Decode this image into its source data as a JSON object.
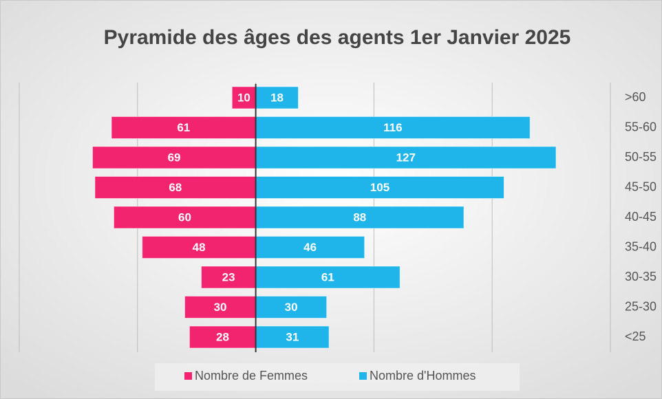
{
  "chart_data": {
    "type": "pyramid",
    "title": "Pyramide des âges des agents 1er Janvier 2025",
    "categories": [
      ">60",
      "55-60",
      "50-55",
      "45-50",
      "40-45",
      "35-40",
      "30-35",
      "25-30",
      "<25"
    ],
    "series": [
      {
        "name": "Nombre de Femmes",
        "color": "#f2246f",
        "side": "left",
        "values": [
          10,
          61,
          69,
          68,
          60,
          48,
          23,
          30,
          28
        ]
      },
      {
        "name": "Nombre d'Hommes",
        "color": "#1fb5ea",
        "side": "right",
        "values": [
          18,
          116,
          127,
          105,
          88,
          46,
          61,
          30,
          31
        ]
      }
    ],
    "xlim": [
      -100,
      150
    ],
    "xticks": [
      -100,
      -50,
      0,
      50,
      100,
      150
    ],
    "grid": true,
    "legend": "bottom"
  }
}
